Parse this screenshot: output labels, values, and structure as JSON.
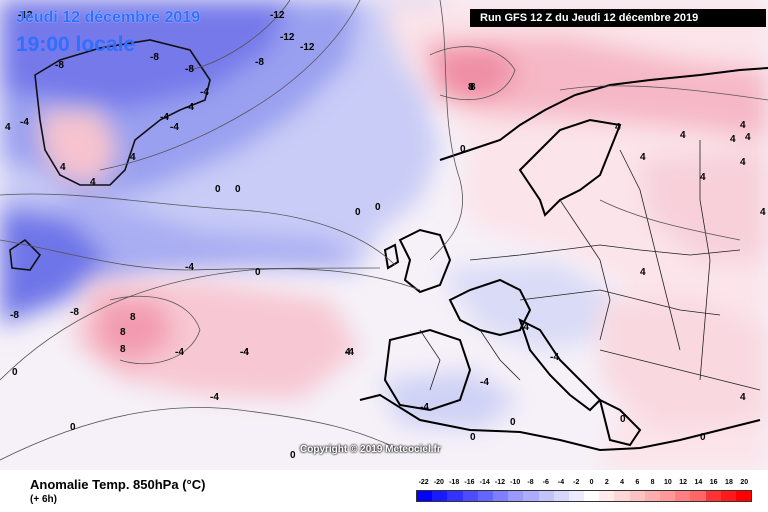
{
  "header": {
    "date": "Jeudi 12 décembre 2019",
    "time": "19:00 locale",
    "run": "Run GFS 12 Z du Jeudi 12 décembre 2019"
  },
  "map": {
    "copyright": "Copyright © 2019 Meteociel.fr",
    "contour_labels": [
      "-12",
      "-12",
      "-12",
      "-12",
      "-8",
      "-8",
      "-8",
      "-8",
      "-8",
      "-8",
      "-4",
      "-4",
      "-4",
      "-4",
      "-4",
      "-4",
      "-4",
      "-4",
      "-4",
      "-4",
      "-4",
      "-4",
      "-4",
      "-4",
      "-4",
      "0",
      "0",
      "0",
      "0",
      "0",
      "0",
      "0",
      "0",
      "0",
      "0",
      "0",
      "0",
      "0",
      "4",
      "4",
      "4",
      "4",
      "4",
      "4",
      "4",
      "4",
      "4",
      "4",
      "4",
      "4",
      "4",
      "4",
      "4",
      "8",
      "8",
      "8",
      "8",
      "8",
      "4"
    ]
  },
  "footer": {
    "title": "Anomalie Temp. 850hPa (°C)",
    "subtitle": "(+ 6h)"
  },
  "legend": {
    "ticks": [
      "-22",
      "-20",
      "-18",
      "-16",
      "-14",
      "-12",
      "-10",
      "-8",
      "-6",
      "-4",
      "-2",
      "0",
      "2",
      "4",
      "6",
      "8",
      "10",
      "12",
      "14",
      "16",
      "18",
      "20"
    ],
    "colors": [
      "#0000ff",
      "#1a1aff",
      "#3333ff",
      "#4d4dff",
      "#6666ff",
      "#8080ff",
      "#9999ff",
      "#adadff",
      "#c2c2ff",
      "#d6d6ff",
      "#ebebff",
      "#ffffff",
      "#ffebeb",
      "#ffd6d6",
      "#ffc2c2",
      "#ffadad",
      "#ff9999",
      "#ff8080",
      "#ff6666",
      "#ff3333",
      "#ff1a1a",
      "#ff0000"
    ]
  }
}
